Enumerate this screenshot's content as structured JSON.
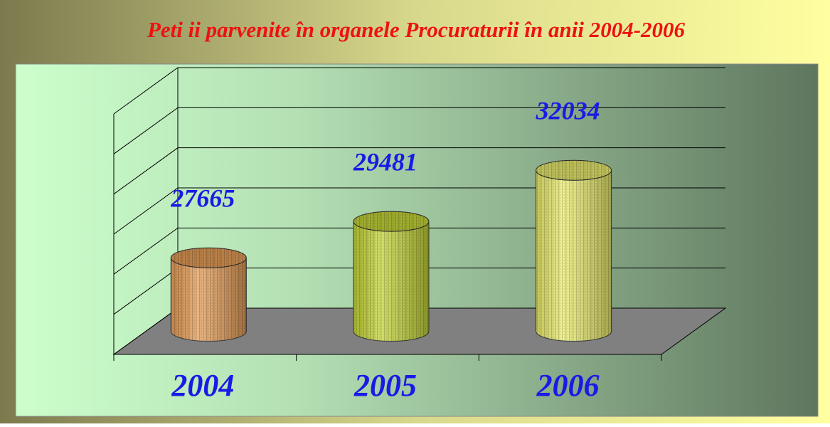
{
  "chart_data": {
    "type": "bar",
    "title": "Peti ii parvenite în organele Procuraturii în anii 2004-2006",
    "categories": [
      "2004",
      "2005",
      "2006"
    ],
    "values": [
      27665,
      29481,
      32034
    ],
    "colors": [
      "#e8a05a",
      "#c8d83a",
      "#eef070"
    ],
    "ylim": [
      24000,
      36000
    ],
    "yticks": [
      24000,
      26000,
      28000,
      30000,
      32000,
      34000,
      36000
    ],
    "grid": true
  }
}
